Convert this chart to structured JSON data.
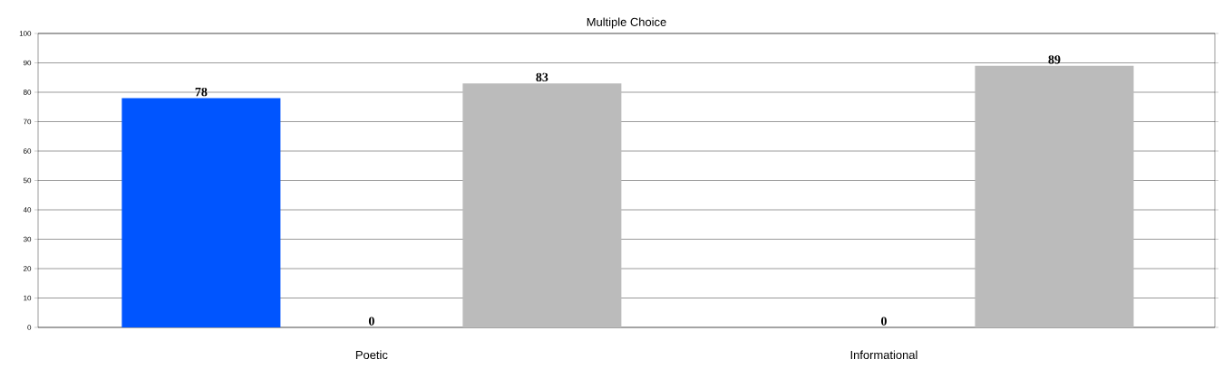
{
  "chart_data": {
    "type": "bar",
    "title": "Multiple Choice",
    "categories": [
      "Poetic",
      "Informational"
    ],
    "series": [
      {
        "color": "#0055ff",
        "values": [
          78,
          null
        ]
      },
      {
        "values": [
          0,
          0
        ]
      },
      {
        "color": "#bbbbbb",
        "values": [
          83,
          89
        ]
      }
    ],
    "ylim": [
      0,
      100
    ],
    "yticks": [
      0,
      10,
      20,
      30,
      40,
      50,
      60,
      70,
      80,
      90,
      100
    ],
    "grid": "y",
    "data_labels": true
  }
}
